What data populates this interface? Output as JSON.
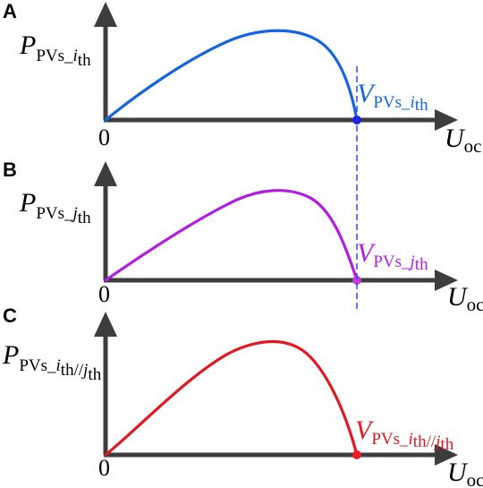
{
  "panels": [
    {
      "letter": "A",
      "y_label": {
        "main": "P",
        "sub_a": "PVs_",
        "sub_b": "i",
        "sub_c": "th"
      },
      "v_label": {
        "main": "V",
        "sub_a": "PVs_",
        "sub_b": "i",
        "sub_c": "th"
      },
      "origin_label": "0",
      "x_label": {
        "main": "U",
        "sub": "oc"
      },
      "color": "#1565e0",
      "point_color": "#1f1fe6"
    },
    {
      "letter": "B",
      "y_label": {
        "main": "P",
        "sub_a": "PVs_",
        "sub_b": "j",
        "sub_c": "th"
      },
      "v_label": {
        "main": "V",
        "sub_a": "PVs_",
        "sub_b": "j",
        "sub_c": "th"
      },
      "origin_label": "0",
      "x_label": {
        "main": "U",
        "sub": "oc"
      },
      "color": "#b21de0",
      "point_color": "#c23ed6"
    },
    {
      "letter": "C",
      "y_label": {
        "main": "P",
        "sub_a": "PVs_",
        "sub_b": "i",
        "sub_c": "th",
        "sub_d": "//",
        "sub_e": "j",
        "sub_f": "th"
      },
      "v_label": {
        "main": "V",
        "sub_a": "PVs_",
        "sub_b": "i",
        "sub_c": "th",
        "sub_d": "//",
        "sub_e": "j",
        "sub_f": "th"
      },
      "origin_label": "0",
      "x_label": {
        "main": "U",
        "sub": "oc"
      },
      "color": "#e0181f",
      "point_color": "#ee1d23"
    }
  ],
  "guide_line": {
    "color": "#1f3ce6",
    "style": "dashed"
  }
}
